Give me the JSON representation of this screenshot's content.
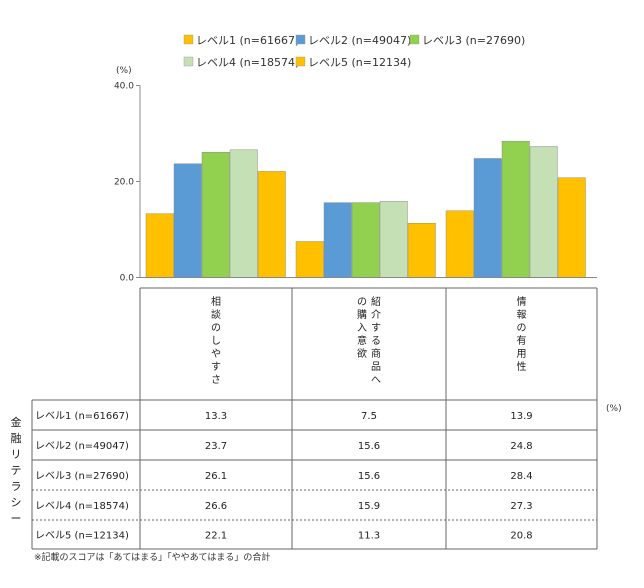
{
  "chart_data": {
    "type": "bar",
    "unit_label": "(%)",
    "ylim": [
      0,
      40
    ],
    "yticks": [
      "0.0",
      "20.0",
      "40.0"
    ],
    "grid": false,
    "legend_position": "top",
    "categories": [
      "相談のしやすさ",
      "紹介する商品への購入意欲",
      "情報の有用性"
    ],
    "series": [
      {
        "name": "レベル1 (n=61667)",
        "color": "#FFC000",
        "values": [
          13.3,
          7.5,
          13.9
        ]
      },
      {
        "name": "レベル2 (n=49047)",
        "color": "#5B9BD5",
        "values": [
          23.7,
          15.6,
          24.8
        ]
      },
      {
        "name": "レベル3 (n=27690)",
        "color": "#92D050",
        "values": [
          26.1,
          15.6,
          28.4
        ]
      },
      {
        "name": "レベル4 (n=18574)",
        "color": "#C5E0B4",
        "values": [
          26.6,
          15.9,
          27.3
        ]
      },
      {
        "name": "レベル5 (n=12134)",
        "color": "#FFC000",
        "values": [
          22.1,
          11.3,
          20.8
        ]
      }
    ],
    "table": {
      "row_group_label": "金融リテラシー",
      "unit_label": "(%)",
      "rows": [
        {
          "label": "レベル1 (n=61667)",
          "values": [
            "13.3",
            "7.5",
            "13.9"
          ]
        },
        {
          "label": "レベル2 (n=49047)",
          "values": [
            "23.7",
            "15.6",
            "24.8"
          ]
        },
        {
          "label": "レベル3 (n=27690)",
          "values": [
            "26.1",
            "15.6",
            "28.4"
          ]
        },
        {
          "label": "レベル4 (n=18574)",
          "values": [
            "26.6",
            "15.9",
            "27.3"
          ]
        },
        {
          "label": "レベル5 (n=12134)",
          "values": [
            "22.1",
            "11.3",
            "20.8"
          ]
        }
      ]
    },
    "footnote": "※記載のスコアは「あてはまる」「ややあてはまる」の合計"
  }
}
